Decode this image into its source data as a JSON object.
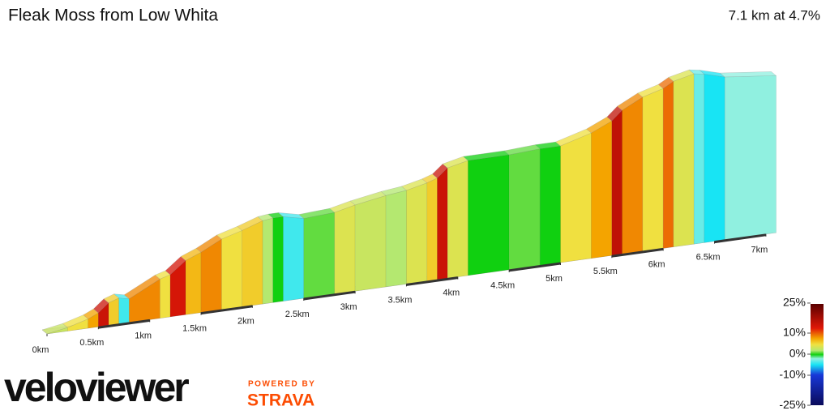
{
  "header": {
    "title": "Fleak Moss from Low Whita",
    "summary": "7.1 km at 4.7%"
  },
  "profile": {
    "distance_km": [
      0,
      0.2,
      0.4,
      0.5,
      0.6,
      0.7,
      0.8,
      1.1,
      1.2,
      1.35,
      1.5,
      1.7,
      1.9,
      2.1,
      2.2,
      2.3,
      2.5,
      2.8,
      3.0,
      3.3,
      3.5,
      3.7,
      3.8,
      3.9,
      4.1,
      4.5,
      4.8,
      5.0,
      5.3,
      5.5,
      5.6,
      5.8,
      6.0,
      6.1,
      6.3,
      6.4,
      6.6,
      7.1
    ],
    "gradient": [
      3,
      5,
      8,
      15,
      6,
      -4,
      9,
      5,
      14,
      7,
      9,
      5,
      6,
      2,
      0,
      -4,
      1,
      4,
      3,
      2,
      4,
      6,
      15,
      4,
      0,
      1,
      0,
      5,
      8,
      16,
      9,
      5,
      10,
      4,
      -3,
      -5,
      -2
    ],
    "distance_ticks": [
      {
        "value": 0,
        "label": "0km"
      },
      {
        "value": 0.5,
        "label": "0.5km"
      },
      {
        "value": 1,
        "label": "1km"
      },
      {
        "value": 1.5,
        "label": "1.5km"
      },
      {
        "value": 2,
        "label": "2km"
      },
      {
        "value": 2.5,
        "label": "2.5km"
      },
      {
        "value": 3,
        "label": "3km"
      },
      {
        "value": 3.5,
        "label": "3.5km"
      },
      {
        "value": 4,
        "label": "4km"
      },
      {
        "value": 4.5,
        "label": "4.5km"
      },
      {
        "value": 5,
        "label": "5km"
      },
      {
        "value": 5.5,
        "label": "5.5km"
      },
      {
        "value": 6,
        "label": "6km"
      },
      {
        "value": 6.5,
        "label": "6.5km"
      },
      {
        "value": 7,
        "label": "7km"
      }
    ]
  },
  "legend": {
    "ticks": [
      {
        "value": 25,
        "label": "25%"
      },
      {
        "value": 10,
        "label": "10%"
      },
      {
        "value": 0,
        "label": "0%"
      },
      {
        "value": -10,
        "label": "-10%"
      },
      {
        "value": -25,
        "label": "-25%"
      }
    ],
    "color_stops": [
      {
        "value": -25,
        "color": "#0a0a5a"
      },
      {
        "value": -10,
        "color": "#1838d8"
      },
      {
        "value": -5,
        "color": "#18e4f4"
      },
      {
        "value": -2,
        "color": "#90f0e0"
      },
      {
        "value": 0,
        "color": "#10d010"
      },
      {
        "value": 2,
        "color": "#b4e870"
      },
      {
        "value": 5,
        "color": "#f0e040"
      },
      {
        "value": 8,
        "color": "#f4a400"
      },
      {
        "value": 13,
        "color": "#e01808"
      },
      {
        "value": 25,
        "color": "#5a0000"
      }
    ]
  },
  "branding": {
    "logo": "veloviewer",
    "powered_by": "POWERED BY",
    "strava": "STRAVA"
  }
}
